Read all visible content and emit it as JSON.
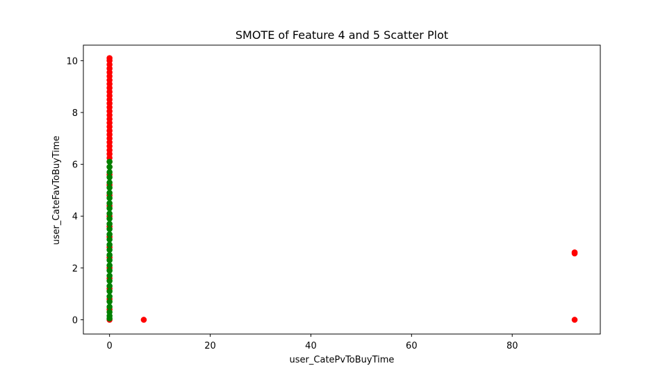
{
  "chart_data": {
    "type": "scatter",
    "title": "SMOTE of Feature 4 and 5 Scatter Plot",
    "xlabel": "user_CatePvToBuyTime",
    "ylabel": "user_CateFavToBuyTime",
    "xlim": [
      -5.2,
      97.5
    ],
    "ylim": [
      -0.55,
      10.6
    ],
    "xticks": [
      0,
      20,
      40,
      60,
      80
    ],
    "yticks": [
      0,
      2,
      4,
      6,
      8,
      10
    ],
    "grid": false,
    "series": [
      {
        "color": "#ff0000",
        "points": [
          [
            0,
            10.1
          ],
          [
            0,
            10.0
          ],
          [
            0,
            9.85
          ],
          [
            0,
            9.7
          ],
          [
            0,
            9.55
          ],
          [
            0,
            9.4
          ],
          [
            0,
            9.25
          ],
          [
            0,
            9.1
          ],
          [
            0,
            8.95
          ],
          [
            0,
            8.8
          ],
          [
            0,
            8.65
          ],
          [
            0,
            8.5
          ],
          [
            0,
            8.35
          ],
          [
            0,
            8.2
          ],
          [
            0,
            8.05
          ],
          [
            0,
            7.9
          ],
          [
            0,
            7.75
          ],
          [
            0,
            7.6
          ],
          [
            0,
            7.45
          ],
          [
            0,
            7.3
          ],
          [
            0,
            7.15
          ],
          [
            0,
            7.0
          ],
          [
            0,
            6.85
          ],
          [
            0,
            6.7
          ],
          [
            0,
            6.55
          ],
          [
            0,
            6.4
          ],
          [
            0,
            6.25
          ],
          [
            0,
            6.1
          ],
          [
            0,
            5.9
          ],
          [
            0,
            5.6
          ],
          [
            0,
            5.2
          ],
          [
            0,
            4.8
          ],
          [
            0,
            4.4
          ],
          [
            0,
            4.0
          ],
          [
            0,
            3.6
          ],
          [
            0,
            3.2
          ],
          [
            0,
            2.8
          ],
          [
            0,
            2.4
          ],
          [
            0,
            2.0
          ],
          [
            0,
            1.6
          ],
          [
            0,
            1.2
          ],
          [
            0,
            0.8
          ],
          [
            0,
            0.4
          ],
          [
            0,
            0.0
          ],
          [
            6.8,
            0.0
          ],
          [
            92.4,
            2.6
          ],
          [
            92.4,
            2.56
          ],
          [
            92.4,
            0.0
          ]
        ]
      },
      {
        "color": "#008000",
        "points": [
          [
            0,
            6.1
          ],
          [
            0,
            5.9
          ],
          [
            0,
            5.7
          ],
          [
            0,
            5.5
          ],
          [
            0,
            5.3
          ],
          [
            0,
            5.1
          ],
          [
            0,
            4.9
          ],
          [
            0,
            4.7
          ],
          [
            0,
            4.5
          ],
          [
            0,
            4.3
          ],
          [
            0,
            4.1
          ],
          [
            0,
            3.9
          ],
          [
            0,
            3.7
          ],
          [
            0,
            3.5
          ],
          [
            0,
            3.3
          ],
          [
            0,
            3.1
          ],
          [
            0,
            2.9
          ],
          [
            0,
            2.7
          ],
          [
            0,
            2.5
          ],
          [
            0,
            2.3
          ],
          [
            0,
            2.1
          ],
          [
            0,
            1.9
          ],
          [
            0,
            1.7
          ],
          [
            0,
            1.5
          ],
          [
            0,
            1.3
          ],
          [
            0,
            1.1
          ],
          [
            0,
            0.9
          ],
          [
            0,
            0.7
          ],
          [
            0,
            0.5
          ],
          [
            0,
            0.3
          ],
          [
            0,
            0.15
          ],
          [
            0,
            0.05
          ]
        ]
      }
    ]
  }
}
